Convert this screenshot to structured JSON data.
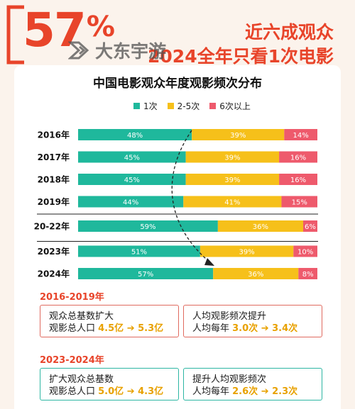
{
  "header": {
    "big_number": "57",
    "big_unit": "%",
    "line1": "近六成观众",
    "line2": "2024全年只看1次电影",
    "watermark": "大东宇游"
  },
  "colors": {
    "teal": "#1fb89c",
    "yellow": "#f6c01a",
    "red": "#ee5a6c",
    "accent": "#e8442a"
  },
  "chart_data": {
    "type": "bar",
    "orientation": "horizontal",
    "stacked": "percent",
    "title": "中国电影观众年度观影频次分布",
    "categories": [
      "2016年",
      "2017年",
      "2018年",
      "2019年",
      "20-22年",
      "2023年",
      "2024年"
    ],
    "series": [
      {
        "name": "1次",
        "values": [
          48,
          45,
          45,
          44,
          59,
          51,
          57
        ]
      },
      {
        "name": "2-5次",
        "values": [
          39,
          39,
          39,
          41,
          36,
          39,
          36
        ]
      },
      {
        "name": "6次以上",
        "values": [
          14,
          16,
          16,
          15,
          6,
          10,
          8
        ]
      }
    ],
    "value_format": "%",
    "legend": "top-center"
  },
  "section1": {
    "title": "2016-2019年",
    "box1": {
      "line1": "观众总基数扩大",
      "prefix": "观影总人口 ",
      "value": "4.5亿 ➔ 5.3亿"
    },
    "box2": {
      "line1": "人均观影频次提升",
      "prefix": "人均每年 ",
      "value": "3.0次 ➔ 3.4次"
    }
  },
  "section2": {
    "title": "2023-2024年",
    "box1": {
      "line1": "扩大观众总基数",
      "prefix": "观影总人口 ",
      "value": "5.0亿 ➔ 4.3亿"
    },
    "box2": {
      "line1": "提升人均观影频次",
      "prefix": "人均每年 ",
      "value": "2.6次 ➔ 2.3次"
    }
  }
}
